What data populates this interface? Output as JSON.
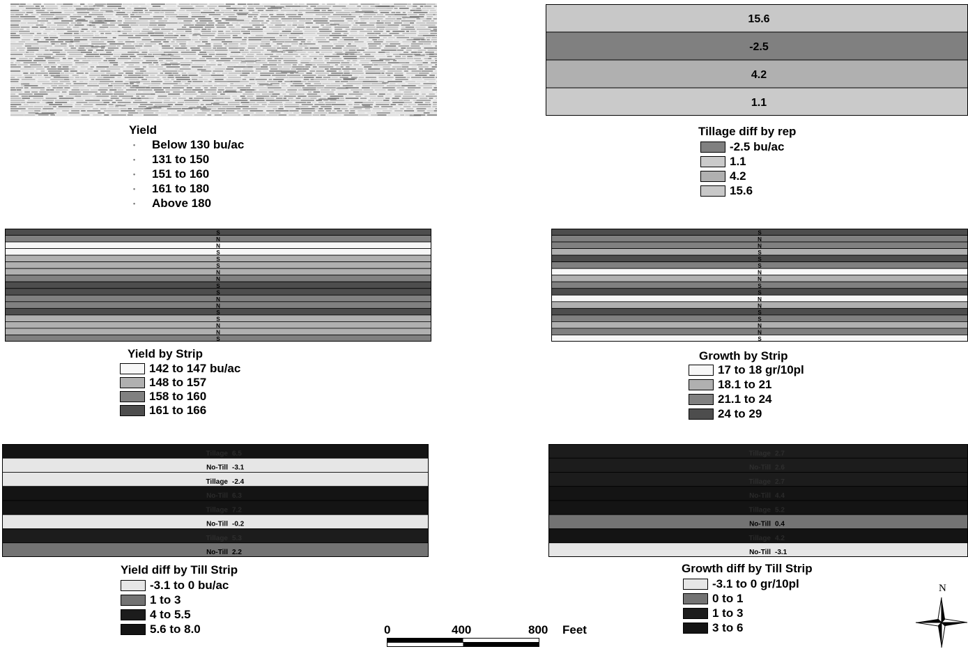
{
  "colors": {
    "white": "#f7f7f7",
    "light": "#e4e4e4",
    "lightgray": "#c8c8c8",
    "midgray": "#b0b0b0",
    "gray": "#808080",
    "darkgray": "#4d4d4d",
    "dark": "#262626",
    "black": "#1a1a1a"
  },
  "yield_map": {
    "legend_title": "Yield",
    "legend": [
      "Below 130 bu/ac",
      "131 to 150",
      "151 to 160",
      "161 to 180",
      "Above 180"
    ]
  },
  "tillage_rep": {
    "bands": [
      {
        "label": "15.6",
        "color": "#c8c8c8"
      },
      {
        "label": "-2.5",
        "color": "#808080"
      },
      {
        "label": "4.2",
        "color": "#b0b0b0"
      },
      {
        "label": "1.1",
        "color": "#cacaca"
      }
    ],
    "legend_title": "Tillage diff by rep",
    "legend": [
      {
        "label": "-2.5 bu/ac",
        "color": "#808080"
      },
      {
        "label": "1.1",
        "color": "#cacaca"
      },
      {
        "label": "4.2",
        "color": "#b0b0b0"
      },
      {
        "label": "15.6",
        "color": "#c8c8c8"
      }
    ]
  },
  "yield_strip": {
    "strips": [
      {
        "code": "S",
        "color": "#4d4d4d"
      },
      {
        "code": "N",
        "color": "#808080"
      },
      {
        "code": "N",
        "color": "#f7f7f7"
      },
      {
        "code": "S",
        "color": "#f7f7f7"
      },
      {
        "code": "S",
        "color": "#b0b0b0"
      },
      {
        "code": "S",
        "color": "#b0b0b0"
      },
      {
        "code": "N",
        "color": "#b0b0b0"
      },
      {
        "code": "N",
        "color": "#808080"
      },
      {
        "code": "S",
        "color": "#4d4d4d"
      },
      {
        "code": "S",
        "color": "#4d4d4d"
      },
      {
        "code": "N",
        "color": "#808080"
      },
      {
        "code": "N",
        "color": "#808080"
      },
      {
        "code": "S",
        "color": "#4d4d4d"
      },
      {
        "code": "S",
        "color": "#b0b0b0"
      },
      {
        "code": "N",
        "color": "#b0b0b0"
      },
      {
        "code": "N",
        "color": "#b0b0b0"
      },
      {
        "code": "S",
        "color": "#808080"
      }
    ],
    "legend_title": "Yield by Strip",
    "legend": [
      {
        "label": "142 to 147 bu/ac",
        "color": "#f7f7f7"
      },
      {
        "label": "148 to 157",
        "color": "#b0b0b0"
      },
      {
        "label": "158 to 160",
        "color": "#808080"
      },
      {
        "label": "161 to 166",
        "color": "#4d4d4d"
      }
    ]
  },
  "growth_strip": {
    "strips": [
      {
        "code": "S",
        "color": "#4d4d4d"
      },
      {
        "code": "N",
        "color": "#808080"
      },
      {
        "code": "N",
        "color": "#808080"
      },
      {
        "code": "S",
        "color": "#b0b0b0"
      },
      {
        "code": "S",
        "color": "#4d4d4d"
      },
      {
        "code": "S",
        "color": "#808080"
      },
      {
        "code": "N",
        "color": "#f7f7f7"
      },
      {
        "code": "N",
        "color": "#b0b0b0"
      },
      {
        "code": "S",
        "color": "#808080"
      },
      {
        "code": "S",
        "color": "#4d4d4d"
      },
      {
        "code": "N",
        "color": "#f7f7f7"
      },
      {
        "code": "N",
        "color": "#b0b0b0"
      },
      {
        "code": "S",
        "color": "#4d4d4d"
      },
      {
        "code": "S",
        "color": "#808080"
      },
      {
        "code": "N",
        "color": "#b0b0b0"
      },
      {
        "code": "N",
        "color": "#808080"
      },
      {
        "code": "S",
        "color": "#f7f7f7"
      }
    ],
    "legend_title": "Growth by Strip",
    "legend": [
      {
        "label": "17 to 18 gr/10pl",
        "color": "#f7f7f7"
      },
      {
        "label": "18.1 to 21",
        "color": "#b0b0b0"
      },
      {
        "label": "21.1 to 24",
        "color": "#808080"
      },
      {
        "label": "24 to 29",
        "color": "#4d4d4d"
      }
    ]
  },
  "yield_till": {
    "strips": [
      {
        "treatment": "Tillage",
        "value": "6.5",
        "color": "#141414",
        "text": "#2a2a2a"
      },
      {
        "treatment": "No-Till",
        "value": "-3.1",
        "color": "#e6e6e6",
        "text": "#000000"
      },
      {
        "treatment": "Tillage",
        "value": "-2.4",
        "color": "#e6e6e6",
        "text": "#000000"
      },
      {
        "treatment": "No-Till",
        "value": "6.3",
        "color": "#141414",
        "text": "#2a2a2a"
      },
      {
        "treatment": "Tillage",
        "value": "7.2",
        "color": "#141414",
        "text": "#2a2a2a"
      },
      {
        "treatment": "No-Till",
        "value": "-0.2",
        "color": "#e6e6e6",
        "text": "#000000"
      },
      {
        "treatment": "Tillage",
        "value": "5.3",
        "color": "#1c1c1c",
        "text": "#2e2e2e"
      },
      {
        "treatment": "No-Till",
        "value": "2.2",
        "color": "#737373",
        "text": "#000000"
      }
    ],
    "legend_title": "Yield diff by Till Strip",
    "legend": [
      {
        "label": "-3.1 to 0 bu/ac",
        "color": "#e6e6e6"
      },
      {
        "label": "1 to 3",
        "color": "#737373"
      },
      {
        "label": "4 to 5.5",
        "color": "#1c1c1c"
      },
      {
        "label": "5.6 to 8.0",
        "color": "#141414"
      }
    ]
  },
  "growth_till": {
    "strips": [
      {
        "treatment": "Tillage",
        "value": "2.7",
        "color": "#1c1c1c",
        "text": "#2e2e2e"
      },
      {
        "treatment": "No-Till",
        "value": "2.6",
        "color": "#1c1c1c",
        "text": "#2e2e2e"
      },
      {
        "treatment": "Tillage",
        "value": "2.7",
        "color": "#1c1c1c",
        "text": "#2e2e2e"
      },
      {
        "treatment": "No-Till",
        "value": "4.4",
        "color": "#141414",
        "text": "#2a2a2a"
      },
      {
        "treatment": "Tillage",
        "value": "5.2",
        "color": "#141414",
        "text": "#2a2a2a"
      },
      {
        "treatment": "No-Till",
        "value": "0.4",
        "color": "#737373",
        "text": "#000000"
      },
      {
        "treatment": "Tillage",
        "value": "4.2",
        "color": "#141414",
        "text": "#2a2a2a"
      },
      {
        "treatment": "No-Till",
        "value": "-3.1",
        "color": "#e6e6e6",
        "text": "#000000"
      }
    ],
    "legend_title": "Growth diff by Till Strip",
    "legend": [
      {
        "label": "-3.1 to 0 gr/10pl",
        "color": "#e6e6e6"
      },
      {
        "label": "0 to 1",
        "color": "#737373"
      },
      {
        "label": "1 to 3",
        "color": "#1c1c1c"
      },
      {
        "label": "3 to 6",
        "color": "#141414"
      }
    ]
  },
  "scale_bar": {
    "ticks": [
      "0",
      "400",
      "800"
    ],
    "unit": "Feet"
  },
  "north_arrow": {
    "label": "N"
  }
}
